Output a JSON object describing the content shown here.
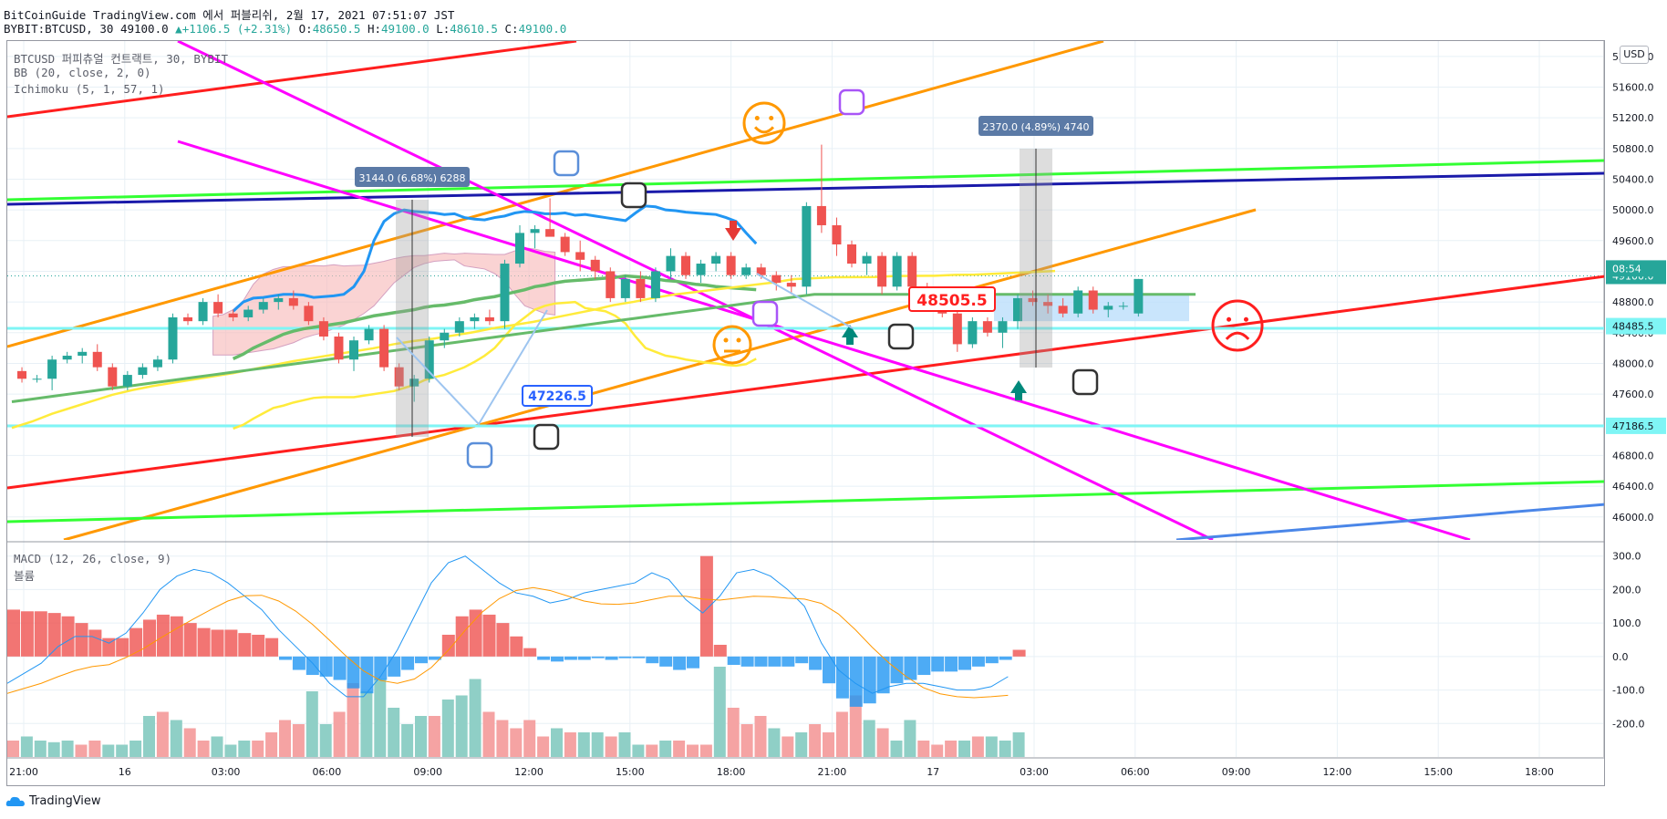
{
  "header": {
    "line1": "BitCoinGuide TradingView.com 에서 퍼블리쉬, 2월 17, 2021 07:51:07 JST",
    "symbol": "BYBIT:BTCUSD, 30",
    "last": "49100.0",
    "change": "+1106.5 (+2.31%)",
    "o_label": "O:",
    "o": "48650.5",
    "h_label": "H:",
    "h": "49100.0",
    "l_label": "L:",
    "l": "48610.5",
    "c_label": "C:",
    "c": "49100.0"
  },
  "legend": {
    "title": "BTCUSD 퍼피츄얼 컨트랙트, 30, BYBIT",
    "bb": "BB (20, close, 2, 0)",
    "ichimoku": "Ichimoku (5, 1, 57, 1)",
    "macd": "MACD (12, 26, close, 9)",
    "volume": "볼륨"
  },
  "currency": "USD",
  "branding": "TradingView",
  "colors": {
    "up": "#26a69a",
    "down": "#ef5350",
    "bb": "#2196f3",
    "cloud": "#f8bbbb",
    "trend_red": "#ff1e1e",
    "magenta": "#ff00ff",
    "orange": "#ff9800",
    "green": "#33ff33",
    "navy": "#1a1aaa"
  },
  "chart_data": [
    {
      "type": "candlestick",
      "title": "BTCUSD 퍼피츄얼 컨트랙트, 30, BYBIT",
      "ylim": [
        45700,
        52200
      ],
      "y_ticks": [
        "46000.0",
        "46400.0",
        "46800.0",
        "47200.0",
        "47600.0",
        "48000.0",
        "48400.0",
        "48800.0",
        "49200.0",
        "49600.0",
        "50000.0",
        "50400.0",
        "50800.0",
        "51200.0",
        "51600.0",
        "52000.0"
      ],
      "x_ticks": [
        "21:00",
        "16",
        "03:00",
        "06:00",
        "09:00",
        "12:00",
        "15:00",
        "18:00",
        "21:00",
        "17",
        "03:00",
        "06:00",
        "09:00",
        "12:00",
        "15:00",
        "18:00"
      ],
      "price_labels": [
        {
          "text": "49100.0",
          "price": 49140,
          "color": "#26a69a"
        },
        {
          "text": "08:54",
          "price": 48880,
          "color": "#26a69a"
        },
        {
          "text": "48485.5",
          "price": 48485.5,
          "color": "#7ff5f5"
        },
        {
          "text": "47186.5",
          "price": 47186.5,
          "color": "#7ff5f5"
        }
      ],
      "measurements": [
        {
          "text": "3144.0 (6.68%) 6288"
        },
        {
          "text": "2370.0 (4.89%) 4740"
        }
      ],
      "callouts": [
        {
          "text": "47226.5",
          "color": "#2962ff"
        },
        {
          "text": "48505.5",
          "color": "#ff1e1e"
        }
      ],
      "candles": [
        [
          47900,
          47950,
          47750,
          47800
        ],
        [
          47800,
          47850,
          47750,
          47800
        ],
        [
          47800,
          48100,
          47650,
          48050
        ],
        [
          48050,
          48150,
          48000,
          48100
        ],
        [
          48100,
          48200,
          48000,
          48150
        ],
        [
          48150,
          48250,
          47900,
          47950
        ],
        [
          47950,
          48000,
          47650,
          47700
        ],
        [
          47700,
          47900,
          47650,
          47850
        ],
        [
          47850,
          48000,
          47800,
          47950
        ],
        [
          47950,
          48100,
          47900,
          48050
        ],
        [
          48050,
          48650,
          48000,
          48600
        ],
        [
          48600,
          48650,
          48500,
          48550
        ],
        [
          48550,
          48850,
          48500,
          48800
        ],
        [
          48800,
          48900,
          48600,
          48650
        ],
        [
          48650,
          48700,
          48550,
          48600
        ],
        [
          48600,
          48750,
          48550,
          48700
        ],
        [
          48700,
          48850,
          48650,
          48800
        ],
        [
          48800,
          48900,
          48700,
          48850
        ],
        [
          48850,
          48950,
          48700,
          48750
        ],
        [
          48750,
          48800,
          48500,
          48550
        ],
        [
          48550,
          48600,
          48300,
          48350
        ],
        [
          48350,
          48400,
          48000,
          48050
        ],
        [
          48050,
          48350,
          47900,
          48300
        ],
        [
          48300,
          48500,
          48250,
          48450
        ],
        [
          48450,
          48500,
          47900,
          47950
        ],
        [
          47950,
          48000,
          47650,
          47700
        ],
        [
          47700,
          47850,
          47500,
          47800
        ],
        [
          47800,
          48350,
          47750,
          48300
        ],
        [
          48300,
          48450,
          48200,
          48400
        ],
        [
          48400,
          48600,
          48350,
          48550
        ],
        [
          48550,
          48650,
          48450,
          48600
        ],
        [
          48600,
          48700,
          48500,
          48550
        ],
        [
          48550,
          49350,
          48450,
          49300
        ],
        [
          49300,
          49800,
          49250,
          49700
        ],
        [
          49700,
          49800,
          49500,
          49750
        ],
        [
          49750,
          50150,
          49700,
          49650
        ],
        [
          49650,
          49700,
          49400,
          49450
        ],
        [
          49450,
          49600,
          49200,
          49350
        ],
        [
          49350,
          49400,
          49100,
          49200
        ],
        [
          49200,
          49250,
          48800,
          48850
        ],
        [
          48850,
          49150,
          48800,
          49100
        ],
        [
          49100,
          49200,
          48800,
          48850
        ],
        [
          48850,
          49250,
          48800,
          49200
        ],
        [
          49200,
          49500,
          49100,
          49400
        ],
        [
          49400,
          49450,
          49100,
          49150
        ],
        [
          49150,
          49350,
          49050,
          49300
        ],
        [
          49300,
          49450,
          49200,
          49400
        ],
        [
          49400,
          49450,
          49100,
          49150
        ],
        [
          49150,
          49300,
          49100,
          49250
        ],
        [
          49250,
          49300,
          49100,
          49150
        ],
        [
          49150,
          49200,
          48950,
          49050
        ],
        [
          49050,
          49150,
          48900,
          49000
        ],
        [
          49000,
          50100,
          48900,
          50050
        ],
        [
          50050,
          50850,
          49700,
          49800
        ],
        [
          49800,
          49900,
          49400,
          49550
        ],
        [
          49550,
          49600,
          49250,
          49300
        ],
        [
          49300,
          49450,
          49150,
          49400
        ],
        [
          49400,
          49450,
          48900,
          49000
        ],
        [
          49000,
          49450,
          48950,
          49400
        ],
        [
          49400,
          49450,
          48900,
          49000
        ],
        [
          49000,
          49050,
          48750,
          48900
        ],
        [
          48900,
          49000,
          48600,
          48650
        ],
        [
          48650,
          48700,
          48150,
          48250
        ],
        [
          48250,
          48600,
          48200,
          48550
        ],
        [
          48550,
          48600,
          48350,
          48400
        ],
        [
          48400,
          48600,
          48200,
          48550
        ],
        [
          48550,
          48900,
          48450,
          48850
        ],
        [
          48850,
          48950,
          48750,
          48800
        ],
        [
          48800,
          48900,
          48650,
          48750
        ],
        [
          48750,
          48850,
          48600,
          48650
        ],
        [
          48650,
          49000,
          48600,
          48950
        ],
        [
          48950,
          49000,
          48650,
          48700
        ],
        [
          48700,
          48800,
          48600,
          48750
        ],
        [
          48750,
          48800,
          48700,
          48750
        ],
        [
          48650.5,
          49100,
          48610.5,
          49100
        ]
      ],
      "bb_mid": [
        48060,
        48120,
        48200,
        48260,
        48320,
        48380,
        48420,
        48450,
        48470,
        48490,
        48510,
        48530,
        48560,
        48590,
        48620,
        48640,
        48660,
        48680,
        48700,
        48730,
        48750,
        48760,
        48780,
        48800,
        48830,
        48850,
        48870,
        48900,
        48930,
        48960,
        49000,
        49020,
        49050,
        49070,
        49080,
        49090,
        49100,
        49110,
        49120,
        49140,
        49130,
        49120,
        49100,
        49080,
        49070,
        49050,
        49030,
        49020,
        49000,
        48990,
        48980,
        48970,
        48960
      ],
      "bb_upper": [
        48680,
        48800,
        48850,
        48860,
        48880,
        48900,
        48900,
        48890,
        48860,
        48870,
        48880,
        48900,
        49000,
        49200,
        49600,
        49850,
        49950,
        50000,
        49980,
        49970,
        49960,
        49940,
        49950,
        49900,
        49880,
        49870,
        49900,
        49920,
        49960,
        49980,
        49970,
        49950,
        49950,
        49960,
        49930,
        49940,
        49920,
        49900,
        49880,
        49860,
        49960,
        50050,
        50040,
        50000,
        49990,
        49970,
        49960,
        49950,
        49940,
        49900,
        49850,
        49700,
        49560
      ],
      "bb_lower": [
        47150,
        47200,
        47280,
        47350,
        47420,
        47450,
        47490,
        47520,
        47550,
        47560,
        47560,
        47560,
        47560,
        47580,
        47600,
        47620,
        47640,
        47680,
        47720,
        47780,
        47820,
        47850,
        47900,
        47950,
        48020,
        48100,
        48200,
        48350,
        48500,
        48600,
        48700,
        48750,
        48780,
        48790,
        48800,
        48720,
        48700,
        48680,
        48620,
        48520,
        48350,
        48200,
        48150,
        48100,
        48080,
        48050,
        48030,
        48010,
        48000,
        47980,
        47970,
        47990,
        48060
      ],
      "macd": [
        -80,
        -50,
        -20,
        30,
        60,
        60,
        40,
        70,
        130,
        200,
        240,
        260,
        250,
        220,
        180,
        140,
        80,
        30,
        -20,
        -80,
        -120,
        -120,
        -60,
        20,
        120,
        220,
        280,
        300,
        260,
        220,
        190,
        180,
        160,
        170,
        190,
        200,
        210,
        220,
        250,
        230,
        170,
        130,
        180,
        250,
        260,
        240,
        200,
        150,
        40,
        -40,
        -80,
        -110,
        -90,
        -80,
        -80,
        -90,
        -100,
        -100,
        -90,
        -60
      ]
    },
    {
      "type": "bar",
      "title": "MACD (12, 26, close, 9)",
      "ylim": [
        -300,
        340
      ],
      "y_ticks": [
        "300.0",
        "200.0",
        "100.0",
        "0.0",
        "-100.0",
        "-200.0"
      ],
      "histogram": [
        140,
        135,
        135,
        130,
        120,
        100,
        80,
        55,
        55,
        85,
        110,
        125,
        120,
        100,
        85,
        80,
        80,
        70,
        65,
        55,
        -10,
        -40,
        -55,
        -60,
        -70,
        -95,
        -110,
        -70,
        -60,
        -40,
        -20,
        -10,
        65,
        120,
        140,
        125,
        100,
        60,
        25,
        -10,
        -15,
        -10,
        -10,
        -5,
        -10,
        -5,
        -5,
        -20,
        -30,
        -40,
        -35,
        300,
        35,
        -25,
        -30,
        -30,
        -30,
        -30,
        -20,
        -40,
        -80,
        -125,
        -150,
        -140,
        -110,
        -80,
        -70,
        -55,
        -45,
        -45,
        -40,
        -30,
        -20,
        -10,
        20
      ],
      "volume": [
        20,
        25,
        20,
        18,
        20,
        15,
        20,
        15,
        15,
        20,
        50,
        55,
        45,
        35,
        20,
        25,
        15,
        20,
        20,
        30,
        45,
        40,
        80,
        40,
        55,
        90,
        80,
        95,
        60,
        40,
        50,
        50,
        70,
        75,
        95,
        55,
        45,
        35,
        45,
        25,
        35,
        30,
        30,
        30,
        25,
        30,
        15,
        15,
        20,
        20,
        15,
        15,
        110,
        60,
        40,
        50,
        35,
        25,
        30,
        40,
        30,
        55,
        75,
        45,
        35,
        20,
        45,
        20,
        15,
        20,
        20,
        25,
        25,
        20,
        30
      ]
    }
  ]
}
